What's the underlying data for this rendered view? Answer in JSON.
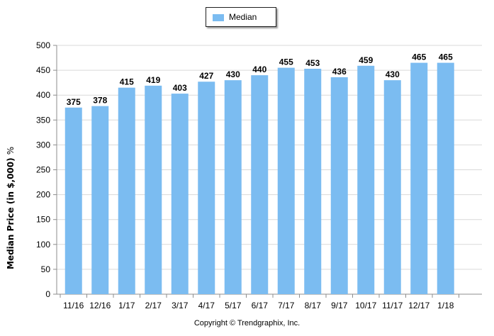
{
  "legend": {
    "label": "Median",
    "color": "#7bbcf1"
  },
  "copyright": "Copyright © Trendgraphix, Inc.",
  "chart_data": {
    "type": "bar",
    "categories": [
      "11/16",
      "12/16",
      "1/17",
      "2/17",
      "3/17",
      "4/17",
      "5/17",
      "6/17",
      "7/17",
      "8/17",
      "9/17",
      "10/17",
      "11/17",
      "12/17",
      "1/18"
    ],
    "series": [
      {
        "name": "Median",
        "values": [
          375,
          378,
          415,
          419,
          403,
          427,
          430,
          440,
          455,
          453,
          436,
          459,
          430,
          465,
          465
        ]
      }
    ],
    "title": "",
    "xlabel": "",
    "ylabel": "Median Price (in $,000)",
    "ylabel_suffix": "%",
    "ylim": [
      0,
      500
    ],
    "yticks": [
      0,
      50,
      100,
      150,
      200,
      250,
      300,
      350,
      400,
      450,
      500
    ],
    "grid": true,
    "legend_position": "top-center",
    "bar_color": "#7bbcf1",
    "data_labels": true
  }
}
